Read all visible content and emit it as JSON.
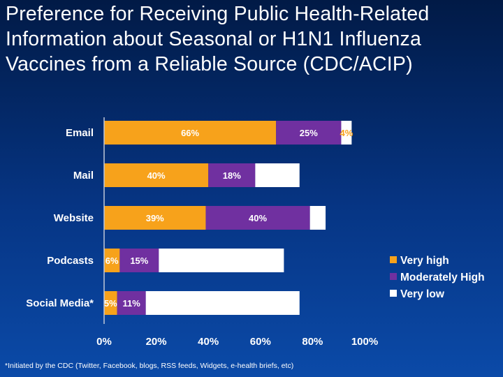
{
  "slide": {
    "title": "Preference for Receiving Public Health-Related Information about Seasonal or H1N1 Influenza Vaccines from a Reliable Source (CDC/ACIP)",
    "footnote": "*Initiated by the CDC (Twitter, Facebook, blogs, RSS feeds, Widgets, e-health briefs, etc)"
  },
  "chart_data": {
    "type": "bar",
    "orientation": "horizontal",
    "stacked": true,
    "categories": [
      "Email",
      "Mail",
      "Website",
      "Podcasts",
      "Social Media*"
    ],
    "series": [
      {
        "name": "Very high",
        "values": [
          66,
          40,
          39,
          6,
          5
        ],
        "labels": [
          "66%",
          "40%",
          "39%",
          "6%",
          "5%"
        ]
      },
      {
        "name": "Moderately High",
        "values": [
          25,
          18,
          40,
          15,
          11
        ],
        "labels": [
          "25%",
          "18%",
          "40%",
          "15%",
          "11%"
        ]
      },
      {
        "name": "Very low",
        "values": [
          4,
          17,
          6,
          48,
          59
        ],
        "labels": [
          "4%",
          "",
          "",
          "",
          ""
        ]
      }
    ],
    "xlim": [
      0,
      100
    ],
    "xticks": [
      "0%",
      "20%",
      "40%",
      "60%",
      "80%",
      "100%"
    ],
    "grid": false,
    "legend": "right",
    "colors": {
      "Very high": "#f7a21b",
      "Moderately High": "#7030a0",
      "Very low": "#ffffff"
    }
  }
}
